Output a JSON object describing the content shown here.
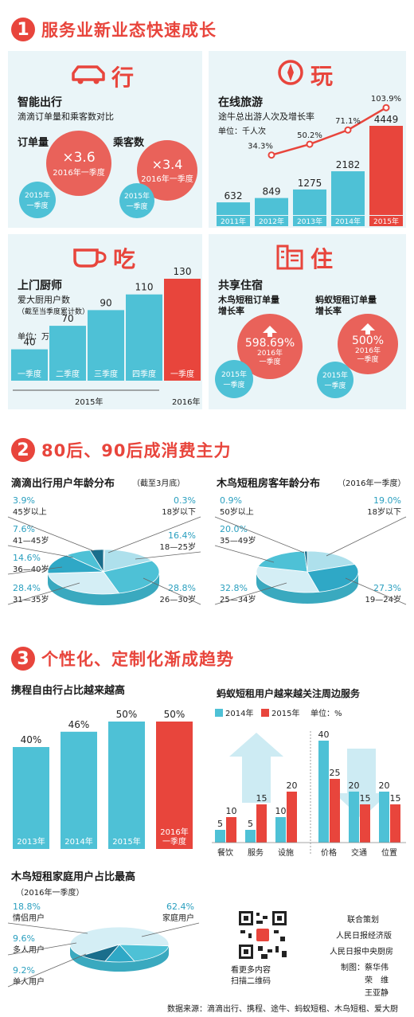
{
  "sections": [
    {
      "num": "1",
      "title": "服务业新业态快速成长"
    },
    {
      "num": "2",
      "title": "80后、90后成消费主力"
    },
    {
      "num": "3",
      "title": "个性化、定制化渐成趋势"
    }
  ],
  "icons": {
    "xing": "car-icon",
    "wan": "compass-icon",
    "chi": "cup-icon",
    "zhu": "building-icon"
  },
  "xing": {
    "category": "行",
    "title": "智能出行",
    "subtitle": "滴滴订单量和乘客数对比",
    "items": [
      {
        "label": "订单量",
        "value": "×3.6",
        "period": "2016年一季度",
        "base": "2015年\n一季度"
      },
      {
        "label": "乘客数",
        "value": "×3.4",
        "period": "2016年一季度",
        "base": "2015年\n一季度"
      }
    ]
  },
  "wan": {
    "category": "玩",
    "title": "在线旅游",
    "subtitle": "途牛总出游人次及增长率",
    "unit": "单位：千人次"
  },
  "chi": {
    "category": "吃",
    "title": "上门厨师",
    "subtitle": "爱大厨用户数",
    "note": "（截至当季度累计数）",
    "unit": "单位：万人",
    "group_2015": "2015年",
    "group_2016": "2016年"
  },
  "zhu": {
    "category": "住",
    "title": "共享住宿",
    "items": [
      {
        "label": "木鸟短租订单量\n增长率",
        "value": "598.69%",
        "period": "2016年\n一季度",
        "base": "2015年\n一季度"
      },
      {
        "label": "蚂蚁短租订单量\n增长率",
        "value": "500%",
        "period": "2016年\n一季度",
        "base": "2015年\n一季度"
      }
    ]
  },
  "colors": {
    "accent": "#e8453c",
    "cyan": "#4ec1d6",
    "panel": "#eaf5f8"
  },
  "chart_data": [
    {
      "type": "bar",
      "id": "tuniu",
      "categories": [
        "2011年",
        "2012年",
        "2013年",
        "2014年",
        "2015年"
      ],
      "values": [
        632,
        849,
        1275,
        2182,
        4449
      ],
      "growth_labels": [
        "",
        "34.3%",
        "50.2%",
        "71.1%",
        "103.9%"
      ],
      "growth": [
        null,
        34.3,
        50.2,
        71.1,
        103.9
      ]
    },
    {
      "type": "bar",
      "id": "aidachu",
      "categories": [
        "一季度",
        "二季度",
        "三季度",
        "四季度",
        "一季度"
      ],
      "values": [
        40,
        70,
        90,
        110,
        130
      ]
    },
    {
      "type": "pie",
      "id": "didi-age",
      "title": "滴滴出行用户年龄分布",
      "note": "（截至3月底）",
      "slices": [
        {
          "label": "18岁以下",
          "value": 0.3,
          "text": "0.3%"
        },
        {
          "label": "18—25岁",
          "value": 16.4,
          "text": "16.4%"
        },
        {
          "label": "26—30岁",
          "value": 28.8,
          "text": "28.8%"
        },
        {
          "label": "31—35岁",
          "value": 28.4,
          "text": "28.4%"
        },
        {
          "label": "36—40岁",
          "value": 14.6,
          "text": "14.6%"
        },
        {
          "label": "41—45岁",
          "value": 7.6,
          "text": "7.6%"
        },
        {
          "label": "45岁以上",
          "value": 3.9,
          "text": "3.9%"
        }
      ]
    },
    {
      "type": "pie",
      "id": "muniao-age",
      "title": "木鸟短租房客年龄分布",
      "note": "（2016年一季度）",
      "slices": [
        {
          "label": "18岁以下",
          "value": 19.0,
          "text": "19.0%"
        },
        {
          "label": "19—24岁",
          "value": 27.3,
          "text": "27.3%"
        },
        {
          "label": "25—34岁",
          "value": 32.8,
          "text": "32.8%"
        },
        {
          "label": "35—49岁",
          "value": 20.0,
          "text": "20.0%"
        },
        {
          "label": "50岁以上",
          "value": 0.9,
          "text": "0.9%"
        }
      ]
    },
    {
      "type": "bar",
      "id": "xiecheng",
      "title": "携程自由行占比越来越高",
      "categories": [
        "2013年",
        "2014年",
        "2015年",
        "2016年\n一季度"
      ],
      "values": [
        40,
        46,
        50,
        50
      ],
      "labels": [
        "40%",
        "46%",
        "50%",
        "50%"
      ]
    },
    {
      "type": "bar",
      "id": "mayi",
      "title": "蚂蚁短租用户越来越关注周边服务",
      "unit": "单位：%",
      "categories": [
        "餐饮",
        "服务",
        "设施",
        "价格",
        "交通",
        "位置"
      ],
      "series": [
        {
          "name": "2014年",
          "values": [
            5,
            5,
            10,
            40,
            20,
            20
          ]
        },
        {
          "name": "2015年",
          "values": [
            10,
            15,
            20,
            25,
            15,
            15
          ]
        }
      ]
    },
    {
      "type": "pie",
      "id": "muniao-family",
      "title": "木鸟短租家庭用户占比最高",
      "note": "（2016年一季度）",
      "slices": [
        {
          "label": "家庭用户",
          "value": 62.4,
          "text": "62.4%"
        },
        {
          "label": "情侣用户",
          "value": 18.8,
          "text": "18.8%"
        },
        {
          "label": "多人用户",
          "value": 9.6,
          "text": "9.6%"
        },
        {
          "label": "单人用户",
          "value": 9.2,
          "text": "9.2%"
        }
      ]
    }
  ],
  "qr": {
    "caption": "看更多内容\n扫描二维码"
  },
  "credits": {
    "line1": "联合策划",
    "line2": "人民日报经济版",
    "line3": "人民日报中央厨房",
    "line4": "制图：蔡华伟",
    "line5": "荣　维",
    "line6": "王亚静"
  },
  "source": "数据来源：滴滴出行、携程、途牛、蚂蚁短租、木鸟短租、爱大厨"
}
